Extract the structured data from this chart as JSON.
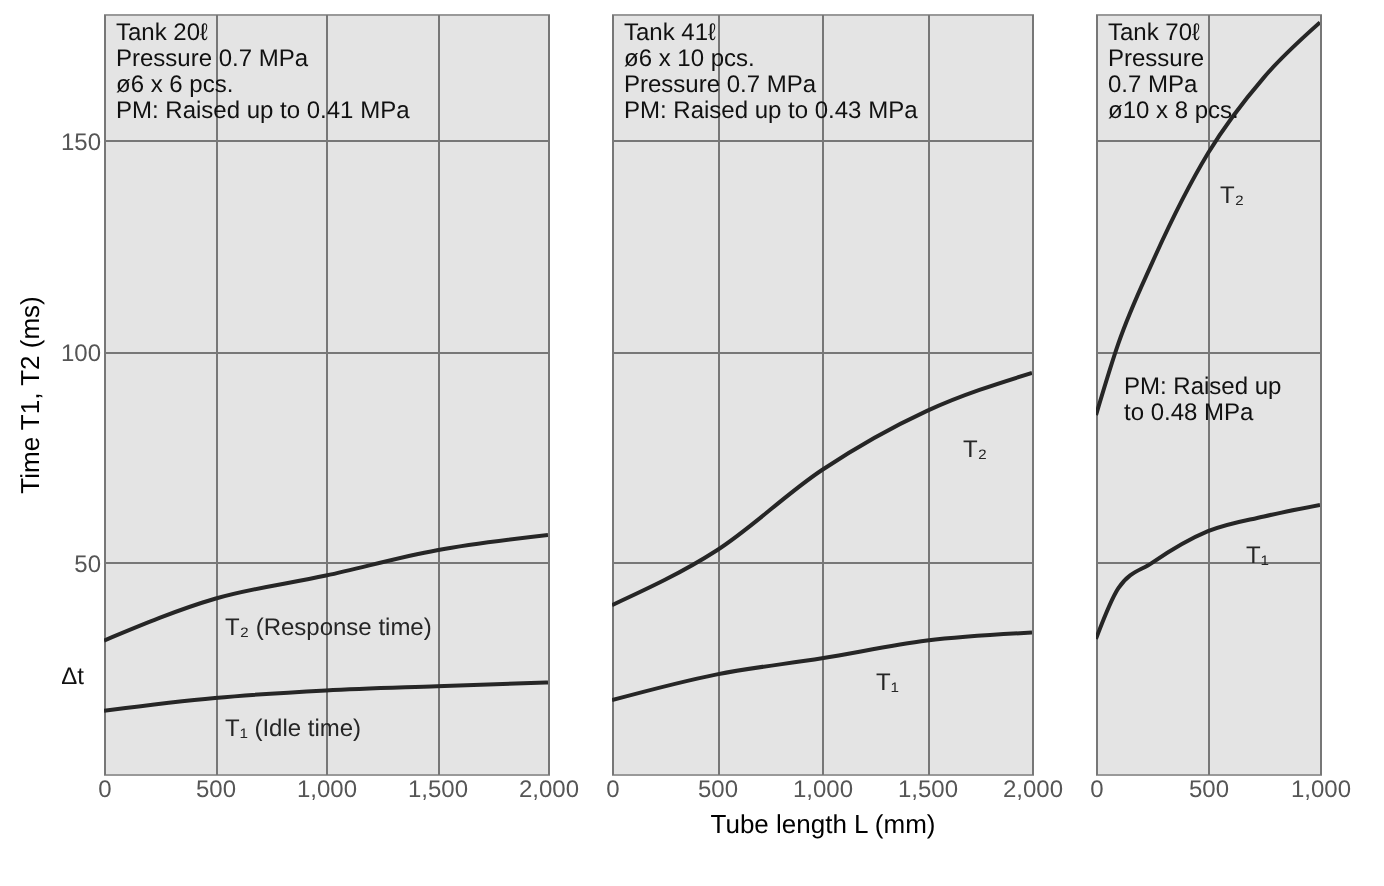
{
  "chart_data": [
    {
      "type": "line",
      "ylabel": "Time T1, T2 (ms)",
      "xlim": [
        0,
        2000
      ],
      "ylim": [
        0,
        180
      ],
      "xticks": [
        0,
        500,
        {
          "value": 1000,
          "label": "1,000"
        },
        {
          "value": 1500,
          "label": "1,500"
        },
        {
          "value": 2000,
          "label": "2,000"
        }
      ],
      "yticks": [
        50,
        100,
        150
      ],
      "grid": true,
      "series": [
        {
          "name": "T₂ (Response time)",
          "color": "#262626",
          "x": [
            0,
            500,
            1000,
            1500,
            2000
          ],
          "values": [
            31.6,
            41.5,
            47,
            53,
            56.6
          ]
        },
        {
          "name": "T₁ (Idle time)",
          "color": "#262626",
          "x": [
            0,
            500,
            1000,
            1500,
            2000
          ],
          "values": [
            15,
            18,
            19.8,
            20.8,
            21.7
          ]
        }
      ],
      "annotations": [
        "Tank 20ℓ\nPressure 0.7 MPa\nø6 x 6 pcs.\nPM: Raised up to 0.41 MPa",
        "Δt"
      ]
    },
    {
      "type": "line",
      "xlabel": "Tube length L (mm)",
      "xlim": [
        0,
        2000
      ],
      "ylim": [
        0,
        180
      ],
      "xticks": [
        0,
        500,
        {
          "value": 1000,
          "label": "1,000"
        },
        {
          "value": 1500,
          "label": "1,500"
        },
        {
          "value": 2000,
          "label": "2,000"
        }
      ],
      "yticks": [
        50,
        100,
        150
      ],
      "grid": true,
      "tick_labels": "x",
      "series": [
        {
          "name": "T₂",
          "color": "#262626",
          "x": [
            0,
            500,
            1000,
            1500,
            2000
          ],
          "values": [
            40,
            53,
            72,
            86,
            95
          ]
        },
        {
          "name": "T₁",
          "color": "#262626",
          "x": [
            0,
            500,
            1000,
            1500,
            2000
          ],
          "values": [
            17.5,
            23.6,
            27.4,
            31.6,
            33.5
          ]
        }
      ],
      "annotations": [
        "Tank 41ℓ\nø6 x 10 pcs.\nPressure 0.7 MPa\nPM: Raised up to 0.43 MPa"
      ]
    },
    {
      "type": "line",
      "xlim": [
        0,
        1000
      ],
      "ylim": [
        0,
        180
      ],
      "xticks": [
        0,
        500,
        {
          "value": 1000,
          "label": "1,000"
        }
      ],
      "yticks": [
        50,
        100,
        150
      ],
      "grid": true,
      "tick_labels": "x",
      "series": [
        {
          "name": "T₂",
          "color": "#262626",
          "x": [
            0,
            100,
            250,
            500,
            750,
            1000
          ],
          "values": [
            85,
            102,
            121,
            147,
            165,
            178
          ]
        },
        {
          "name": "T₁",
          "color": "#262626",
          "x": [
            0,
            100,
            250,
            500,
            750,
            1000
          ],
          "values": [
            32,
            44,
            50,
            57.5,
            61,
            63.7
          ]
        }
      ],
      "annotations": [
        "Tank 70ℓ\nPressure\n0.7 MPa\nø10 x 8 pcs.",
        "PM: Raised up\nto 0.48 MPa"
      ]
    }
  ]
}
